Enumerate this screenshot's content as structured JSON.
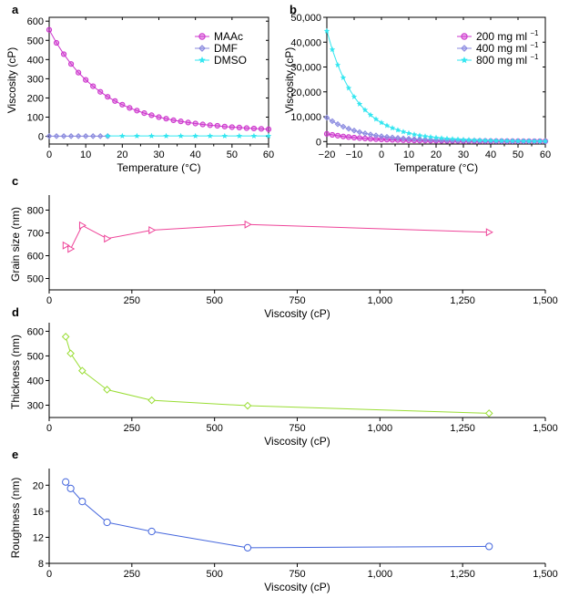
{
  "chart_data": [
    {
      "panel": "a",
      "type": "line",
      "xlabel": "Temperature (°C)",
      "ylabel": "Viscosity (cP)",
      "xlim": [
        0,
        60
      ],
      "ylim": [
        -40,
        620
      ],
      "xticks": [
        0,
        10,
        20,
        30,
        40,
        50,
        60
      ],
      "xtick_labels": [
        "0",
        "10",
        "20",
        "30",
        "40",
        "50",
        "60"
      ],
      "yticks": [
        0,
        100,
        200,
        300,
        400,
        500,
        600
      ],
      "ytick_labels": [
        "0",
        "100",
        "200",
        "300",
        "400",
        "500",
        "600"
      ],
      "legend_position": "top-right",
      "series": [
        {
          "name": "MAAc",
          "color": "#cc33cc",
          "marker": "circle",
          "x": [
            0,
            2,
            4,
            6,
            8,
            10,
            12,
            14,
            16,
            18,
            20,
            22,
            24,
            26,
            28,
            30,
            32,
            34,
            36,
            38,
            40,
            42,
            44,
            46,
            48,
            50,
            52,
            54,
            56,
            58,
            60
          ],
          "y": [
            555,
            487,
            428,
            377,
            332,
            294,
            261,
            232,
            206,
            184,
            165,
            148,
            134,
            121,
            110,
            100,
            92,
            84,
            78,
            72,
            67,
            62,
            58,
            55,
            51,
            48,
            46,
            43,
            41,
            39,
            37
          ]
        },
        {
          "name": "DMF",
          "color": "#8888dd",
          "marker": "diamond",
          "x": [
            0,
            2,
            4,
            6,
            8,
            10,
            12,
            14,
            16
          ],
          "y": [
            1,
            1,
            1,
            1,
            1,
            1,
            1,
            1,
            1
          ]
        },
        {
          "name": "DMSO",
          "color": "#33e6f0",
          "marker": "star",
          "x": [
            16,
            20,
            24,
            28,
            32,
            36,
            40,
            44,
            48,
            52,
            56,
            60
          ],
          "y": [
            2,
            2,
            2,
            2,
            2,
            2,
            2,
            2,
            2,
            2,
            2,
            2
          ]
        }
      ]
    },
    {
      "panel": "b",
      "type": "line",
      "xlabel": "Temperature (°C)",
      "ylabel": "Viscosity (cP)",
      "xlim": [
        -20,
        60
      ],
      "ylim": [
        -1000,
        50000
      ],
      "xticks": [
        -20,
        -10,
        0,
        10,
        20,
        30,
        40,
        50,
        60
      ],
      "xtick_labels": [
        "−20",
        "−10",
        "0",
        "10",
        "20",
        "30",
        "40",
        "50",
        "60"
      ],
      "yticks": [
        0,
        10000,
        20000,
        30000,
        40000,
        50000
      ],
      "ytick_labels": [
        "0",
        "10,000",
        "20,000",
        "30,000",
        "40,000",
        "50,000"
      ],
      "legend_position": "top-right",
      "series": [
        {
          "name": "200 mg ml",
          "superscript": "−1",
          "color": "#cc33cc",
          "marker": "circle",
          "x": [
            -20,
            -18,
            -16,
            -14,
            -12,
            -10,
            -8,
            -6,
            -4,
            -2,
            0,
            2,
            4,
            6,
            8,
            10,
            12,
            14,
            16,
            18,
            20,
            22,
            24,
            26,
            28,
            30,
            32,
            34,
            36,
            38,
            40,
            42,
            44,
            46,
            48,
            50,
            52,
            54,
            56,
            58,
            60
          ],
          "y": [
            3100,
            2700,
            2350,
            2050,
            1800,
            1580,
            1390,
            1230,
            1090,
            970,
            860,
            770,
            690,
            620,
            560,
            510,
            460,
            420,
            385,
            355,
            328,
            304,
            282,
            262,
            245,
            230,
            216,
            203,
            191,
            181,
            171,
            162,
            154,
            147,
            140,
            134,
            128,
            123,
            118,
            113,
            109
          ]
        },
        {
          "name": "400 mg ml",
          "superscript": "−1",
          "color": "#8a8ae0",
          "marker": "diamond",
          "x": [
            -20,
            -18,
            -16,
            -14,
            -12,
            -10,
            -8,
            -6,
            -4,
            -2,
            0,
            2,
            4,
            6,
            8,
            10,
            12,
            14,
            16,
            18,
            20,
            22,
            24,
            26,
            28,
            30,
            32,
            34,
            36,
            38,
            40,
            42,
            44,
            46,
            48,
            50,
            52,
            54,
            56,
            58,
            60
          ],
          "y": [
            9600,
            8200,
            7000,
            6000,
            5150,
            4420,
            3800,
            3280,
            2840,
            2460,
            2140,
            1870,
            1640,
            1440,
            1270,
            1120,
            990,
            880,
            785,
            700,
            627,
            563,
            507,
            458,
            415,
            377,
            343,
            313,
            287,
            263,
            242,
            223,
            206,
            191,
            177,
            165,
            154,
            144,
            135,
            127,
            119
          ]
        },
        {
          "name": "800 mg ml",
          "superscript": "−1",
          "color": "#33e6f0",
          "marker": "star",
          "x": [
            -20,
            -18,
            -16,
            -14,
            -12,
            -10,
            -8,
            -6,
            -4,
            -2,
            0,
            2,
            4,
            6,
            8,
            10,
            12,
            14,
            16,
            18,
            20,
            22,
            24,
            26,
            28,
            30,
            32,
            34,
            36,
            38,
            40,
            42,
            44,
            46,
            48,
            50,
            52,
            54,
            56,
            58,
            60
          ],
          "y": [
            44500,
            37000,
            30800,
            25700,
            21500,
            18000,
            15100,
            12700,
            10700,
            9000,
            7600,
            6430,
            5450,
            4630,
            3940,
            3360,
            2870,
            2460,
            2110,
            1815,
            1565,
            1352,
            1171,
            1017,
            885,
            772,
            675,
            592,
            520,
            458,
            404,
            358,
            318,
            283,
            253,
            227,
            204,
            184,
            166,
            151,
            137
          ]
        }
      ]
    },
    {
      "panel": "c",
      "type": "line",
      "xlabel": "Viscosity (cP)",
      "ylabel": "Grain size (nm)",
      "xlim": [
        0,
        1500
      ],
      "ylim": [
        450,
        850
      ],
      "xticks": [
        0,
        250,
        500,
        750,
        1000,
        1250,
        1500
      ],
      "xtick_labels": [
        "0",
        "250",
        "500",
        "750",
        "1,000",
        "1,250",
        "1,500"
      ],
      "yticks": [
        500,
        600,
        700,
        800
      ],
      "ytick_labels": [
        "500",
        "600",
        "700",
        "800"
      ],
      "series": [
        {
          "name": "grain size",
          "color": "#ee4499",
          "marker": "triangle-right",
          "x": [
            50,
            65,
            100,
            175,
            310,
            600,
            1330
          ],
          "y": [
            645,
            630,
            733,
            675,
            712,
            737,
            703
          ]
        }
      ]
    },
    {
      "panel": "d",
      "type": "line",
      "xlabel": "Viscosity (cP)",
      "ylabel": "Thickness (nm)",
      "xlim": [
        0,
        1500
      ],
      "ylim": [
        250,
        620
      ],
      "xticks": [
        0,
        250,
        500,
        750,
        1000,
        1250,
        1500
      ],
      "xtick_labels": [
        "0",
        "250",
        "500",
        "750",
        "1,000",
        "1,250",
        "1,500"
      ],
      "yticks": [
        300,
        400,
        500,
        600
      ],
      "ytick_labels": [
        "300",
        "400",
        "500",
        "600"
      ],
      "series": [
        {
          "name": "thickness",
          "color": "#99dd33",
          "marker": "diamond",
          "x": [
            50,
            65,
            100,
            175,
            310,
            600,
            1330
          ],
          "y": [
            578,
            510,
            440,
            363,
            320,
            298,
            267
          ]
        }
      ]
    },
    {
      "panel": "e",
      "type": "line",
      "xlabel": "Viscosity (cP)",
      "ylabel": "Roughness (nm)",
      "xlim": [
        0,
        1500
      ],
      "ylim": [
        8,
        22
      ],
      "xticks": [
        0,
        250,
        500,
        750,
        1000,
        1250,
        1500
      ],
      "xtick_labels": [
        "0",
        "250",
        "500",
        "750",
        "1,000",
        "1,250",
        "1,500"
      ],
      "yticks": [
        8,
        12,
        16,
        20
      ],
      "ytick_labels": [
        "8",
        "12",
        "16",
        "20"
      ],
      "series": [
        {
          "name": "roughness",
          "color": "#4466dd",
          "marker": "circle",
          "x": [
            50,
            65,
            100,
            175,
            310,
            600,
            1330
          ],
          "y": [
            20.5,
            19.5,
            17.5,
            14.3,
            12.9,
            10.4,
            10.6
          ]
        }
      ]
    }
  ]
}
